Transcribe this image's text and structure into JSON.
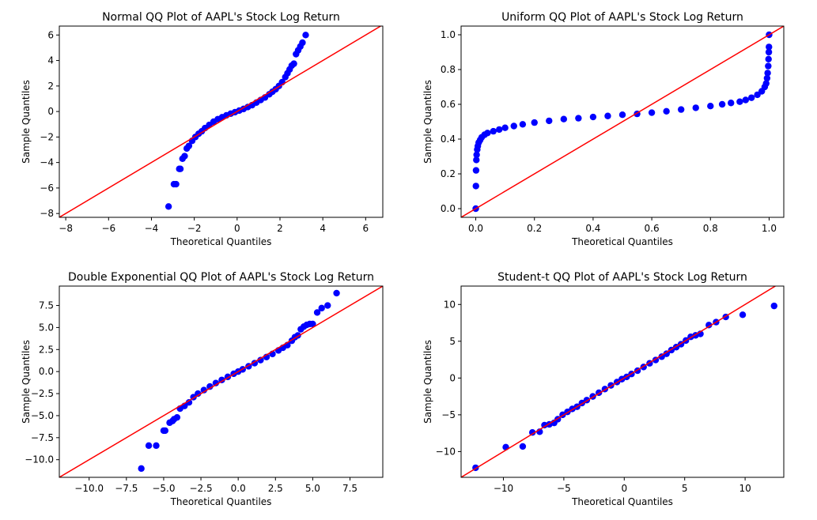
{
  "colors": {
    "points": "#0000ff",
    "ref_line": "#ff0000",
    "frame": "#000000",
    "background": "#ffffff"
  },
  "chart_data": [
    {
      "type": "scatter",
      "title": "Normal QQ Plot of AAPL's Stock Log Return",
      "xlabel": "Theoretical Quantiles",
      "ylabel": "Sample Quantiles",
      "xlim": [
        -8.3,
        6.8
      ],
      "ylim": [
        -8.3,
        6.7
      ],
      "xticks": [
        -8,
        -6,
        -4,
        -2,
        0,
        2,
        4,
        6
      ],
      "xtick_labels": [
        "−8",
        "−6",
        "−4",
        "−2",
        "0",
        "2",
        "4",
        "6"
      ],
      "yticks": [
        -8,
        -6,
        -4,
        -2,
        0,
        2,
        4,
        6
      ],
      "ytick_labels": [
        "−8",
        "−6",
        "−4",
        "−2",
        "0",
        "2",
        "4",
        "6"
      ],
      "reference_line": {
        "slope": 1,
        "intercept": 0
      },
      "grid": false,
      "points": {
        "x": [
          -3.2,
          -2.95,
          -2.85,
          -2.7,
          -2.65,
          -2.55,
          -2.45,
          -2.35,
          -2.25,
          -2.1,
          -1.95,
          -1.8,
          -1.65,
          -1.5,
          -1.3,
          -1.1,
          -0.9,
          -0.7,
          -0.5,
          -0.3,
          -0.1,
          0.1,
          0.3,
          0.5,
          0.7,
          0.9,
          1.1,
          1.3,
          1.5,
          1.65,
          1.8,
          1.95,
          2.1,
          2.25,
          2.35,
          2.45,
          2.55,
          2.65,
          2.75,
          2.85,
          2.95,
          3.05,
          3.2
        ],
        "y": [
          -7.45,
          -5.7,
          -5.7,
          -4.5,
          -4.5,
          -3.7,
          -3.5,
          -2.9,
          -2.7,
          -2.3,
          -2.0,
          -1.75,
          -1.55,
          -1.3,
          -1.05,
          -0.8,
          -0.6,
          -0.45,
          -0.3,
          -0.17,
          -0.05,
          0.07,
          0.2,
          0.35,
          0.5,
          0.7,
          0.9,
          1.1,
          1.35,
          1.55,
          1.75,
          2.0,
          2.3,
          2.7,
          3.0,
          3.3,
          3.6,
          3.75,
          4.5,
          4.8,
          5.1,
          5.4,
          6.0
        ]
      }
    },
    {
      "type": "scatter",
      "title": "Uniform QQ Plot of AAPL's Stock Log Return",
      "xlabel": "Theoretical Quantiles",
      "ylabel": "Sample Quantiles",
      "xlim": [
        -0.05,
        1.05
      ],
      "ylim": [
        -0.05,
        1.05
      ],
      "xticks": [
        0,
        0.2,
        0.4,
        0.6,
        0.8,
        1
      ],
      "xtick_labels": [
        "0.0",
        "0.2",
        "0.4",
        "0.6",
        "0.8",
        "1.0"
      ],
      "yticks": [
        0,
        0.2,
        0.4,
        0.6,
        0.8,
        1
      ],
      "ytick_labels": [
        "0.0",
        "0.2",
        "0.4",
        "0.6",
        "0.8",
        "1.0"
      ],
      "reference_line": {
        "slope": 1,
        "intercept": 0
      },
      "grid": false,
      "points": {
        "x": [
          0.0,
          0.0005,
          0.001,
          0.002,
          0.003,
          0.005,
          0.007,
          0.01,
          0.015,
          0.02,
          0.03,
          0.04,
          0.06,
          0.08,
          0.1,
          0.13,
          0.16,
          0.2,
          0.25,
          0.3,
          0.35,
          0.4,
          0.45,
          0.5,
          0.55,
          0.6,
          0.65,
          0.7,
          0.75,
          0.8,
          0.84,
          0.87,
          0.9,
          0.92,
          0.94,
          0.96,
          0.975,
          0.985,
          0.99,
          0.993,
          0.995,
          0.997,
          0.998,
          0.999,
          0.9995,
          1.0
        ],
        "y": [
          0.0,
          0.13,
          0.22,
          0.28,
          0.31,
          0.34,
          0.36,
          0.38,
          0.395,
          0.41,
          0.425,
          0.435,
          0.445,
          0.455,
          0.465,
          0.475,
          0.485,
          0.495,
          0.505,
          0.515,
          0.52,
          0.527,
          0.533,
          0.54,
          0.545,
          0.552,
          0.56,
          0.57,
          0.58,
          0.59,
          0.6,
          0.608,
          0.615,
          0.625,
          0.638,
          0.655,
          0.675,
          0.7,
          0.72,
          0.75,
          0.78,
          0.82,
          0.86,
          0.9,
          0.93,
          1.0
        ]
      }
    },
    {
      "type": "scatter",
      "title": "Double Exponential QQ Plot of AAPL's Stock Log Return",
      "xlabel": "Theoretical Quantiles",
      "ylabel": "Sample Quantiles",
      "xlim": [
        -12,
        9.7
      ],
      "ylim": [
        -12,
        9.7
      ],
      "xticks": [
        -10,
        -7.5,
        -5,
        -2.5,
        0,
        2.5,
        5,
        7.5
      ],
      "xtick_labels": [
        "−10.0",
        "−7.5",
        "−5.0",
        "−2.5",
        "0.0",
        "2.5",
        "5.0",
        "7.5"
      ],
      "yticks": [
        -10,
        -7.5,
        -5,
        -2.5,
        0,
        2.5,
        5,
        7.5
      ],
      "ytick_labels": [
        "−10.0",
        "−7.5",
        "−5.0",
        "−2.5",
        "0.0",
        "2.5",
        "5.0",
        "7.5"
      ],
      "reference_line": {
        "slope": 1,
        "intercept": 0
      },
      "grid": false,
      "points": {
        "x": [
          -6.5,
          -6.0,
          -5.5,
          -5.0,
          -4.9,
          -4.6,
          -4.4,
          -4.3,
          -4.1,
          -3.9,
          -3.6,
          -3.3,
          -3.0,
          -2.7,
          -2.3,
          -1.9,
          -1.5,
          -1.1,
          -0.7,
          -0.3,
          0.0,
          0.3,
          0.7,
          1.1,
          1.5,
          1.9,
          2.3,
          2.7,
          3.0,
          3.3,
          3.6,
          3.8,
          4.0,
          4.2,
          4.4,
          4.6,
          4.8,
          5.0,
          5.3,
          5.6,
          6.0,
          6.6
        ],
        "y": [
          -11.0,
          -8.4,
          -8.4,
          -6.7,
          -6.7,
          -5.8,
          -5.6,
          -5.4,
          -5.2,
          -4.2,
          -3.9,
          -3.5,
          -2.9,
          -2.5,
          -2.1,
          -1.7,
          -1.3,
          -0.95,
          -0.6,
          -0.25,
          0.0,
          0.25,
          0.6,
          0.95,
          1.3,
          1.65,
          2.0,
          2.4,
          2.7,
          3.0,
          3.5,
          3.9,
          4.1,
          4.8,
          5.1,
          5.3,
          5.4,
          5.4,
          6.7,
          7.2,
          7.5,
          8.9
        ]
      }
    },
    {
      "type": "scatter",
      "title": "Student-t QQ Plot of AAPL's Stock Log Return",
      "xlabel": "Theoretical Quantiles",
      "ylabel": "Sample Quantiles",
      "xlim": [
        -13.5,
        13.2
      ],
      "ylim": [
        -13.5,
        12.5
      ],
      "xticks": [
        -10,
        -5,
        0,
        5,
        10
      ],
      "xtick_labels": [
        "−10",
        "−5",
        "0",
        "5",
        "10"
      ],
      "yticks": [
        -10,
        -5,
        0,
        5,
        10
      ],
      "ytick_labels": [
        "−10",
        "−5",
        "0",
        "5",
        "10"
      ],
      "reference_line": {
        "slope": 1,
        "intercept": 0
      },
      "grid": false,
      "points": {
        "x": [
          -12.3,
          -9.8,
          -8.4,
          -7.6,
          -7.0,
          -6.6,
          -6.2,
          -5.8,
          -5.5,
          -5.1,
          -4.7,
          -4.3,
          -3.9,
          -3.5,
          -3.1,
          -2.6,
          -2.1,
          -1.6,
          -1.1,
          -0.6,
          -0.2,
          0.2,
          0.6,
          1.1,
          1.6,
          2.1,
          2.6,
          3.1,
          3.5,
          3.9,
          4.3,
          4.7,
          5.1,
          5.5,
          5.9,
          6.3,
          7.0,
          7.6,
          8.4,
          9.8,
          12.4
        ],
        "y": [
          -12.2,
          -9.4,
          -9.3,
          -7.4,
          -7.3,
          -6.4,
          -6.3,
          -6.1,
          -5.6,
          -5.0,
          -4.6,
          -4.2,
          -3.9,
          -3.4,
          -3.0,
          -2.5,
          -2.0,
          -1.5,
          -1.0,
          -0.55,
          -0.15,
          0.15,
          0.55,
          1.0,
          1.5,
          2.0,
          2.45,
          2.9,
          3.3,
          3.8,
          4.2,
          4.6,
          5.1,
          5.6,
          5.8,
          6.0,
          7.2,
          7.6,
          8.3,
          8.6,
          9.8
        ]
      }
    }
  ]
}
